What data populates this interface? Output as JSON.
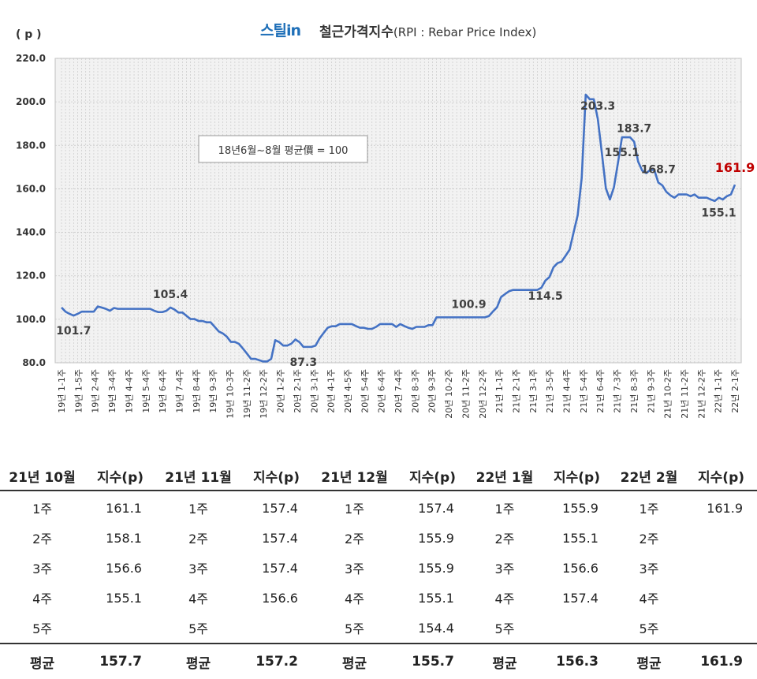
{
  "header": {
    "brand": "스틸in",
    "title": "철근가격지수",
    "title_sub": "(RPI : Rebar Price Index)",
    "unit": "( p )"
  },
  "chart_data": {
    "type": "line",
    "title": "철근가격지수(RPI : Rebar Price Index)",
    "ylabel": "( p )",
    "ylim": [
      80,
      220
    ],
    "yticks": [
      "80.0",
      "100.0",
      "120.0",
      "140.0",
      "160.0",
      "180.0",
      "200.0",
      "220.0"
    ],
    "xtick_labels": [
      "19년 1-1주",
      "19년 1-5주",
      "19년 2-4주",
      "19년 3-4주",
      "19년 4-4주",
      "19년 5-4주",
      "19년 6-4주",
      "19년 7-4주",
      "19년 8-4주",
      "19년 9-3주",
      "19년 10-3주",
      "19년 11-2주",
      "19년 12-2주",
      "20년 1-2주",
      "20년 2-1주",
      "20년 3-1주",
      "20년 4-1주",
      "20년 4-5주",
      "20년 5-4주",
      "20년 6-4주",
      "20년 7-4주",
      "20년 8-3주",
      "20년 9-3주",
      "20년 10-2주",
      "20년 11-2주",
      "20년 12-2주",
      "21년 1-1주",
      "21년 2-1주",
      "21년 3-1주",
      "21년 3-5주",
      "21년 4-4주",
      "21년 5-4주",
      "21년 6-4주",
      "21년 7-3주",
      "21년 8-3주",
      "21년 9-3주",
      "21년 10-2주",
      "21년 11-2주",
      "21년 12-2주",
      "22년 1-1주",
      "22년 2-1주"
    ],
    "grid": true,
    "series": [
      {
        "color": "#4472c4",
        "values": [
          105.4,
          103.5,
          102.5,
          101.7,
          102.5,
          103.5,
          103.5,
          103.5,
          103.5,
          105.9,
          105.4,
          104.8,
          103.9,
          105.2,
          104.8,
          104.8,
          104.8,
          104.8,
          104.8,
          104.8,
          104.8,
          104.8,
          104.8,
          103.9,
          103.3,
          103.3,
          103.9,
          105.4,
          104.5,
          103.1,
          103.1,
          101.6,
          100.1,
          100.1,
          99.2,
          99.2,
          98.6,
          98.6,
          96.5,
          94.4,
          93.5,
          92.0,
          89.6,
          89.6,
          88.7,
          86.5,
          84.2,
          81.8,
          81.8,
          81.2,
          80.6,
          80.6,
          81.8,
          90.4,
          89.5,
          87.9,
          87.9,
          88.8,
          90.7,
          89.5,
          87.3,
          87.3,
          87.3,
          87.9,
          91.2,
          93.7,
          96.1,
          96.8,
          96.8,
          97.8,
          97.8,
          97.8,
          97.8,
          96.9,
          96.1,
          96.1,
          95.6,
          95.6,
          96.5,
          97.8,
          97.8,
          97.8,
          97.8,
          96.5,
          97.8,
          96.9,
          96.1,
          95.6,
          96.5,
          96.5,
          96.5,
          97.3,
          97.3,
          100.9,
          100.9,
          100.9,
          100.9,
          100.9,
          100.9,
          100.9,
          100.9,
          100.9,
          100.9,
          100.9,
          100.9,
          100.9,
          101.5,
          103.6,
          105.5,
          110.2,
          111.6,
          112.9,
          113.5,
          113.5,
          113.5,
          113.5,
          113.5,
          113.5,
          113.5,
          114.5,
          117.8,
          119.4,
          123.9,
          125.8,
          126.5,
          129.2,
          132.0,
          140.0,
          147.8,
          164.9,
          203.3,
          201.2,
          201.2,
          192.1,
          176.5,
          160.2,
          155.1,
          160.8,
          172.0,
          183.7,
          183.7,
          183.7,
          181.7,
          172.5,
          168.4,
          167.2,
          168.7,
          168.7,
          162.9,
          161.6,
          158.6,
          157.0,
          155.9,
          157.4,
          157.4,
          157.4,
          156.6,
          157.4,
          155.9,
          155.9,
          155.9,
          155.1,
          154.4,
          155.9,
          155.1,
          156.6,
          157.4,
          161.9
        ]
      }
    ],
    "annotations": [
      {
        "text": "101.7",
        "x_index": 3,
        "pos": "below"
      },
      {
        "text": "105.4",
        "x_index": 27,
        "pos": "above"
      },
      {
        "text": "87.3",
        "x_index": 60,
        "pos": "below"
      },
      {
        "text": "100.9",
        "x_index": 101,
        "pos": "above"
      },
      {
        "text": "114.5",
        "x_index": 120,
        "pos": "below"
      },
      {
        "text": "203.3",
        "x_index": 133,
        "pos": "above"
      },
      {
        "text": "155.1",
        "x_index": 139,
        "pos": "below"
      },
      {
        "text": "183.7",
        "x_index": 142,
        "pos": "above"
      },
      {
        "text": "168.7",
        "x_index": 148,
        "pos": "above"
      },
      {
        "text": "155.1",
        "x_index": 163,
        "pos": "below"
      },
      {
        "text": "161.9",
        "x_index": 167,
        "pos": "above-red"
      }
    ],
    "textbox": "18년6월~8월 평균價 = 100"
  },
  "table": {
    "headers": [
      {
        "month": "21년 10월",
        "index": "지수(p)"
      },
      {
        "month": "21년 11월",
        "index": "지수(p)"
      },
      {
        "month": "21년 12월",
        "index": "지수(p)"
      },
      {
        "month": "22년 1월",
        "index": "지수(p)"
      },
      {
        "month": "22년 2월",
        "index": "지수(p)"
      }
    ],
    "rows": [
      {
        "week": "1주",
        "values": [
          "161.1",
          "157.4",
          "157.4",
          "155.9",
          "161.9"
        ]
      },
      {
        "week": "2주",
        "values": [
          "158.1",
          "157.4",
          "155.9",
          "155.1",
          ""
        ]
      },
      {
        "week": "3주",
        "values": [
          "156.6",
          "157.4",
          "155.9",
          "156.6",
          ""
        ]
      },
      {
        "week": "4주",
        "values": [
          "155.1",
          "156.6",
          "155.1",
          "157.4",
          ""
        ]
      },
      {
        "week": "5주",
        "values": [
          "",
          "",
          "154.4",
          "",
          ""
        ]
      }
    ],
    "avg_label": "평균",
    "averages": [
      "157.7",
      "157.2",
      "155.7",
      "156.3",
      "161.9"
    ]
  }
}
